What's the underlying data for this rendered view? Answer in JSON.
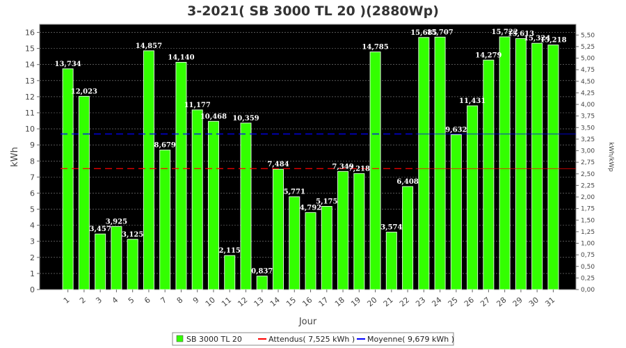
{
  "chart_data": {
    "type": "bar",
    "title": "3-2021( SB 3000 TL 20 )(2880Wp)",
    "xlabel": "Jour",
    "ylabel": "kWh",
    "y2label": "kWh/kWp",
    "ylim": [
      0,
      16.5
    ],
    "y2lim": [
      0,
      5.73
    ],
    "yticks": [
      0,
      1,
      2,
      3,
      4,
      5,
      6,
      7,
      8,
      9,
      10,
      11,
      12,
      13,
      14,
      15,
      16
    ],
    "y2ticks": [
      "0,00",
      "0,25",
      "0,50",
      "0,75",
      "1,00",
      "1,25",
      "1,50",
      "1,75",
      "2,00",
      "2,25",
      "2,50",
      "2,75",
      "3,00",
      "3,25",
      "3,50",
      "3,75",
      "4,00",
      "4,25",
      "4,50",
      "4,75",
      "5,00",
      "5,25",
      "5,50"
    ],
    "categories": [
      "1",
      "2",
      "3",
      "4",
      "5",
      "6",
      "7",
      "8",
      "9",
      "10",
      "11",
      "12",
      "13",
      "14",
      "15",
      "16",
      "17",
      "18",
      "19",
      "20",
      "21",
      "22",
      "23",
      "24",
      "25",
      "26",
      "27",
      "28",
      "29",
      "30",
      "31"
    ],
    "series": [
      {
        "name": "SB 3000 TL 20",
        "color": "#33ff00",
        "values": [
          13.734,
          12.023,
          3.457,
          3.925,
          3.125,
          14.857,
          8.679,
          14.14,
          11.177,
          10.468,
          2.115,
          10.359,
          0.837,
          7.484,
          5.771,
          4.792,
          5.175,
          7.349,
          7.218,
          14.785,
          3.574,
          6.408,
          15.685,
          15.707,
          9.632,
          11.431,
          14.279,
          15.722,
          15.613,
          15.324,
          15.218
        ],
        "labels": [
          "13,734",
          "12,023",
          "3,457",
          "3,925",
          "3,125",
          "14,857",
          "8,679",
          "14,140",
          "11,177",
          "10,468",
          "2,115",
          "10,359",
          "0,837",
          "7,484",
          "5,771",
          "4,792",
          "5,175",
          "7,349",
          "7,218",
          "14,785",
          "3,574",
          "6,408",
          "15,685",
          "15,707",
          "9,632",
          "11,431",
          "14,279",
          "15,722",
          "15,613",
          "15,324",
          "15,218"
        ]
      }
    ],
    "reference_lines": [
      {
        "name": "Attendus",
        "value": 7.525,
        "color": "#ff0000",
        "style": "dashed",
        "x_end_category": "22"
      },
      {
        "name": "Moyenne",
        "value": 9.679,
        "color": "#0000ff",
        "style": "dashed",
        "x_end_category": "22"
      }
    ],
    "grid": true,
    "background": "#000000",
    "legend_position": "bottom",
    "legend": [
      {
        "label": "SB 3000 TL 20",
        "color": "#33ff00",
        "kind": "box"
      },
      {
        "label": "Attendus( 7,525 kWh )",
        "color": "#ff0000",
        "kind": "line"
      },
      {
        "label": "Moyenne( 9,679 kWh )",
        "color": "#0000ff",
        "kind": "line"
      }
    ]
  }
}
